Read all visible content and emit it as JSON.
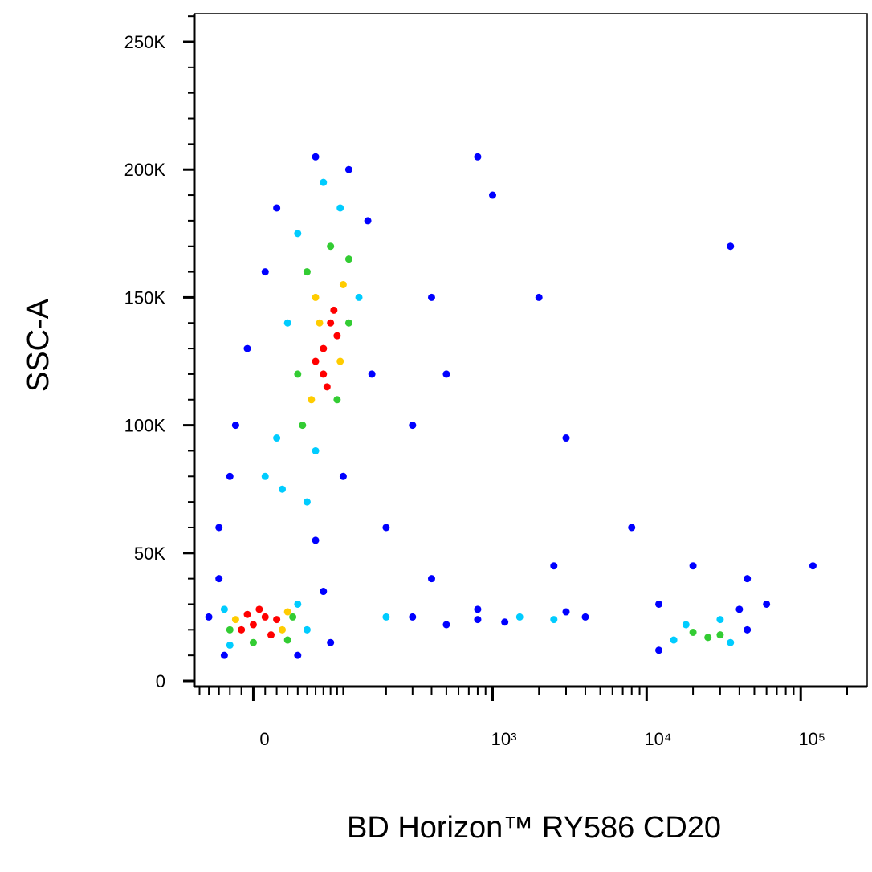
{
  "chart_data": {
    "type": "scatter",
    "x_label": "BD Horizon™ RY586 CD20",
    "y_label": "SSC-A",
    "xlim": [
      -56,
      270000
    ],
    "ylim": [
      -2200,
      261000
    ],
    "xscale": "arcsinh",
    "xscale_cofactor": 56,
    "xticks": [
      0,
      {
        "value": 1000,
        "label": "10³"
      },
      {
        "value": 10000,
        "label": "10⁴"
      },
      {
        "value": 100000,
        "label": "10⁵"
      }
    ],
    "xminorticks": [
      -50,
      -40,
      -30,
      -20,
      -10,
      10,
      20,
      30,
      40,
      50,
      60,
      70,
      80,
      90,
      100,
      200,
      300,
      400,
      500,
      600,
      700,
      800,
      900,
      2000,
      3000,
      4000,
      5000,
      6000,
      7000,
      8000,
      9000,
      20000,
      30000,
      40000,
      50000,
      60000,
      70000,
      80000,
      90000,
      200000
    ],
    "yticks": [
      0,
      {
        "value": 50000,
        "label": "50K"
      },
      {
        "value": 100000,
        "label": "100K"
      },
      {
        "value": 150000,
        "label": "150K"
      },
      {
        "value": 200000,
        "label": "200K"
      },
      {
        "value": 250000,
        "label": "250K"
      }
    ],
    "yminorticks": [
      10000,
      20000,
      30000,
      40000,
      60000,
      70000,
      80000,
      90000,
      110000,
      120000,
      130000,
      140000,
      160000,
      170000,
      180000,
      190000,
      210000,
      220000,
      230000,
      240000,
      260000
    ],
    "series": [
      {
        "color": "#0000ff",
        "x": [
          60,
          110,
          20,
          150,
          10,
          -5,
          160,
          -15,
          -20,
          100,
          -30,
          60,
          -30,
          -40,
          70,
          -25,
          40,
          80,
          300,
          500,
          800,
          1200,
          3000,
          4000,
          800,
          200,
          300,
          400,
          500,
          1000,
          2500,
          12000,
          20000,
          45000,
          60000,
          40000,
          12000,
          45000,
          2000,
          400,
          800,
          35000,
          120000,
          8000,
          3000
        ],
        "values": [
          205000,
          200000,
          185000,
          180000,
          160000,
          130000,
          120000,
          100000,
          80000,
          80000,
          60000,
          55000,
          40000,
          25000,
          35000,
          10000,
          10000,
          15000,
          25000,
          22000,
          28000,
          23000,
          27000,
          25000,
          24000,
          60000,
          100000,
          150000,
          120000,
          190000,
          45000,
          30000,
          45000,
          40000,
          30000,
          28000,
          12000,
          20000,
          150000,
          40000,
          205000,
          170000,
          45000,
          60000,
          95000
        ]
      },
      {
        "color": "#00ccff",
        "x": [
          40,
          95,
          30,
          20,
          60,
          25,
          50,
          10,
          130,
          70,
          -25,
          40,
          -20,
          50,
          200,
          18000,
          30000,
          15000,
          1500,
          2500,
          35000
        ],
        "values": [
          175000,
          185000,
          140000,
          95000,
          90000,
          75000,
          70000,
          80000,
          150000,
          195000,
          28000,
          30000,
          14000,
          20000,
          25000,
          22000,
          24000,
          16000,
          25000,
          24000,
          15000
        ]
      },
      {
        "color": "#33cc33",
        "x": [
          50,
          110,
          45,
          90,
          110,
          80,
          40,
          -20,
          30,
          35,
          0,
          25000,
          20000,
          30000
        ],
        "values": [
          160000,
          165000,
          100000,
          110000,
          140000,
          170000,
          120000,
          20000,
          16000,
          25000,
          15000,
          17000,
          19000,
          18000
        ]
      },
      {
        "color": "#ffcc00",
        "x": [
          60,
          95,
          55,
          100,
          65,
          -15,
          25,
          30
        ],
        "values": [
          150000,
          125000,
          110000,
          155000,
          140000,
          24000,
          20000,
          27000
        ]
      },
      {
        "color": "#ff0000",
        "x": [
          70,
          80,
          70,
          90,
          60,
          85,
          75,
          0,
          10,
          -10,
          5,
          15,
          20,
          -5
        ],
        "values": [
          130000,
          140000,
          120000,
          135000,
          125000,
          145000,
          115000,
          22000,
          25000,
          20000,
          28000,
          18000,
          24000,
          26000
        ]
      }
    ]
  }
}
